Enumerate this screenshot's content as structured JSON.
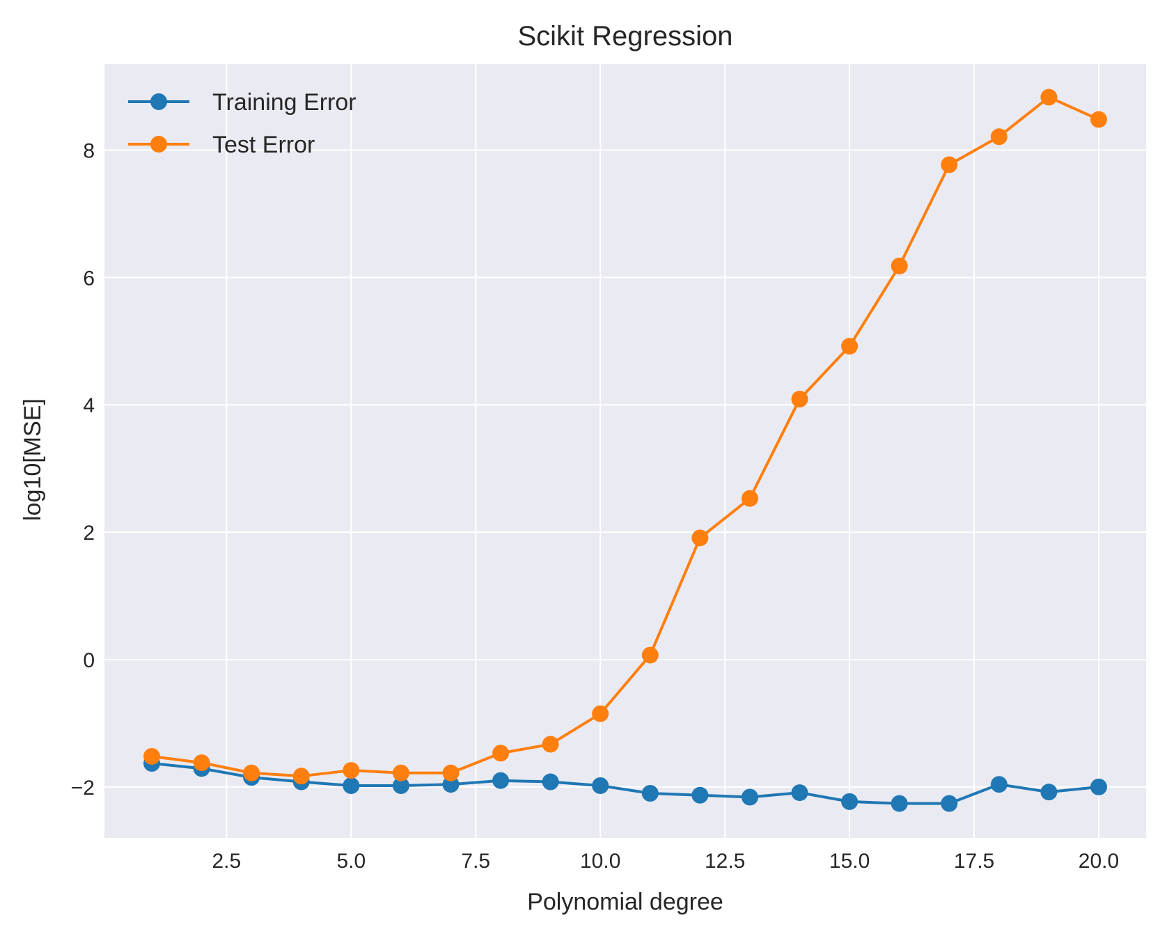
{
  "chart_data": {
    "type": "line",
    "title": "Scikit Regression",
    "xlabel": "Polynomial degree",
    "ylabel": "log10[MSE]",
    "xlim": [
      0.05,
      20.95
    ],
    "ylim": [
      -2.8,
      9.35
    ],
    "xticks": [
      2.5,
      5.0,
      7.5,
      10.0,
      12.5,
      15.0,
      17.5,
      20.0
    ],
    "xtick_labels": [
      "2.5",
      "5.0",
      "7.5",
      "10.0",
      "12.5",
      "15.0",
      "17.5",
      "20.0"
    ],
    "yticks": [
      -2,
      0,
      2,
      4,
      6,
      8
    ],
    "ytick_labels": [
      "−2",
      "0",
      "2",
      "4",
      "6",
      "8"
    ],
    "grid": true,
    "legend_position": "top-left",
    "x": [
      1,
      2,
      3,
      4,
      5,
      6,
      7,
      8,
      9,
      10,
      11,
      12,
      13,
      14,
      15,
      16,
      17,
      18,
      19,
      20
    ],
    "series": [
      {
        "name": "Training Error",
        "color": "#1f77b4",
        "values": [
          -1.63,
          -1.71,
          -1.85,
          -1.92,
          -1.98,
          -1.98,
          -1.96,
          -1.9,
          -1.92,
          -1.98,
          -2.1,
          -2.13,
          -2.16,
          -2.09,
          -2.23,
          -2.26,
          -2.26,
          -1.96,
          -2.08,
          -2.0
        ]
      },
      {
        "name": "Test Error",
        "color": "#ff7f0e",
        "values": [
          -1.52,
          -1.62,
          -1.78,
          -1.83,
          -1.74,
          -1.78,
          -1.78,
          -1.47,
          -1.33,
          -0.85,
          0.07,
          1.91,
          2.53,
          4.09,
          4.92,
          6.18,
          7.77,
          8.21,
          8.83,
          8.48
        ]
      }
    ]
  }
}
